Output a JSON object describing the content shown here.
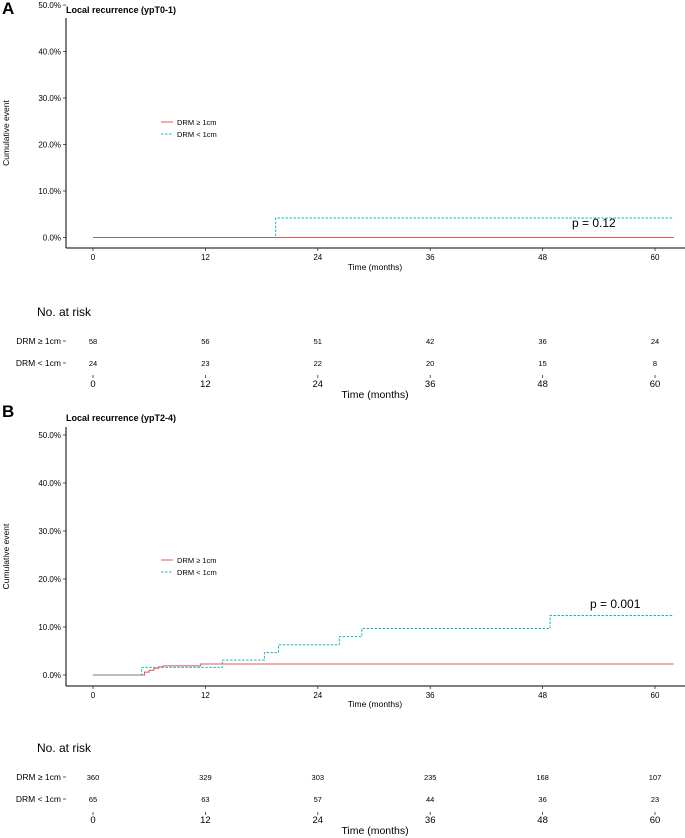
{
  "panels": [
    {
      "letter": "A",
      "title": "Local recurrence (ypT0-1)",
      "pvalue": "p = 0.12",
      "risk_header": "No. at risk",
      "risk_xlabel": "Time (months)",
      "risk_table": [
        {
          "label": "DRM ≥ 1cm",
          "counts": [
            "58",
            "56",
            "51",
            "42",
            "36",
            "24"
          ]
        },
        {
          "label": "DRM < 1cm",
          "counts": [
            "24",
            "23",
            "22",
            "20",
            "15",
            "8"
          ]
        }
      ]
    },
    {
      "letter": "B",
      "title": "Local recurrence (ypT2-4)",
      "pvalue": "p = 0.001",
      "risk_header": "No. at risk",
      "risk_xlabel": "Time (months)",
      "risk_table": [
        {
          "label": "DRM ≥ 1cm",
          "counts": [
            "360",
            "329",
            "303",
            "235",
            "168",
            "107"
          ]
        },
        {
          "label": "DRM < 1cm",
          "counts": [
            "65",
            "63",
            "57",
            "44",
            "36",
            "23"
          ]
        }
      ]
    }
  ],
  "chart_data": [
    {
      "type": "line",
      "step": true,
      "title": "Local recurrence (ypT0-1)",
      "xlabel": "Time (months)",
      "ylabel": "Cumulative event",
      "xlim": [
        0,
        62
      ],
      "ylim": [
        0,
        52
      ],
      "xticks": [
        0,
        12,
        24,
        36,
        48,
        60
      ],
      "yticks": [
        0,
        10,
        20,
        30,
        40,
        50
      ],
      "ytick_labels": [
        "0.0%",
        "10.0%",
        "20.0%",
        "30.0%",
        "40.0%",
        "50.0%"
      ],
      "legend": "upper-left",
      "series": [
        {
          "name": "DRM ≥ 1cm",
          "color": "#e15759",
          "dash": false,
          "x": [
            0,
            62
          ],
          "y": [
            0,
            0
          ]
        },
        {
          "name": "DRM < 1cm",
          "color": "#17b8c4",
          "dash": true,
          "x": [
            0,
            19.5,
            62
          ],
          "y": [
            0,
            4.2,
            4.2
          ]
        }
      ]
    },
    {
      "type": "line",
      "step": true,
      "title": "Local recurrence (ypT2-4)",
      "xlabel": "Time (months)",
      "ylabel": "Cumulative event",
      "xlim": [
        0,
        62
      ],
      "ylim": [
        0,
        52
      ],
      "xticks": [
        0,
        12,
        24,
        36,
        48,
        60
      ],
      "yticks": [
        0,
        10,
        20,
        30,
        40,
        50
      ],
      "ytick_labels": [
        "0.0%",
        "10.0%",
        "20.0%",
        "30.0%",
        "40.0%",
        "50.0%"
      ],
      "legend": "upper-left",
      "series": [
        {
          "name": "DRM ≥ 1cm",
          "color": "#e15759",
          "dash": false,
          "x": [
            0,
            5.5,
            6,
            6.5,
            7,
            7.5,
            11.5,
            62
          ],
          "y": [
            0,
            0.6,
            1.0,
            1.4,
            1.7,
            1.9,
            2.3,
            2.3
          ]
        },
        {
          "name": "DRM < 1cm",
          "color": "#17b8c4",
          "dash": true,
          "x": [
            0,
            5.2,
            13.8,
            18.3,
            19.8,
            26.3,
            28.7,
            48.8,
            62
          ],
          "y": [
            0,
            1.6,
            3.1,
            4.7,
            6.3,
            8.0,
            9.7,
            12.4,
            12.4
          ]
        }
      ]
    }
  ]
}
